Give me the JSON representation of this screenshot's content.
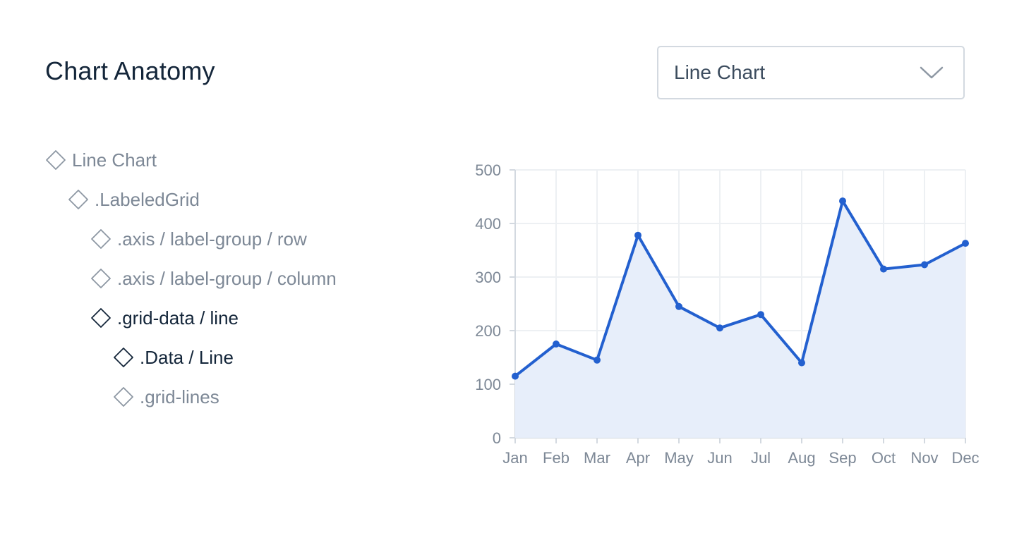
{
  "header": {
    "title": "Chart Anatomy"
  },
  "chart_type_select": {
    "value": "Line Chart",
    "icon": "chevron-down-icon"
  },
  "layer_tree": {
    "icon": "diamond-icon",
    "items": [
      {
        "label": "Line Chart",
        "depth": 0,
        "active": false
      },
      {
        "label": ".LabeledGrid",
        "depth": 1,
        "active": false
      },
      {
        "label": ".axis / label-group / row",
        "depth": 2,
        "active": false
      },
      {
        "label": ".axis / label-group / column",
        "depth": 2,
        "active": false
      },
      {
        "label": ".grid-data / line",
        "depth": 2,
        "active": true
      },
      {
        "label": ".Data / Line",
        "depth": 3,
        "active": true
      },
      {
        "label": ".grid-lines",
        "depth": 3,
        "active": false
      }
    ]
  },
  "colors": {
    "line": "#2360cf",
    "area": "#e7eefa",
    "grid": "#edf0f3",
    "axis_text": "#7d8896",
    "active_text": "#14263a"
  },
  "chart_data": {
    "type": "line",
    "categories": [
      "Jan",
      "Feb",
      "Mar",
      "Apr",
      "May",
      "Jun",
      "Jul",
      "Aug",
      "Sep",
      "Oct",
      "Nov",
      "Dec"
    ],
    "series": [
      {
        "values": [
          115,
          175,
          145,
          378,
          245,
          205,
          230,
          140,
          442,
          315,
          323,
          363
        ]
      }
    ],
    "yticks": [
      0,
      100,
      200,
      300,
      400,
      500
    ],
    "ylim": [
      0,
      500
    ],
    "area_fill": true,
    "markers": true,
    "grid": true,
    "legend": "none"
  }
}
